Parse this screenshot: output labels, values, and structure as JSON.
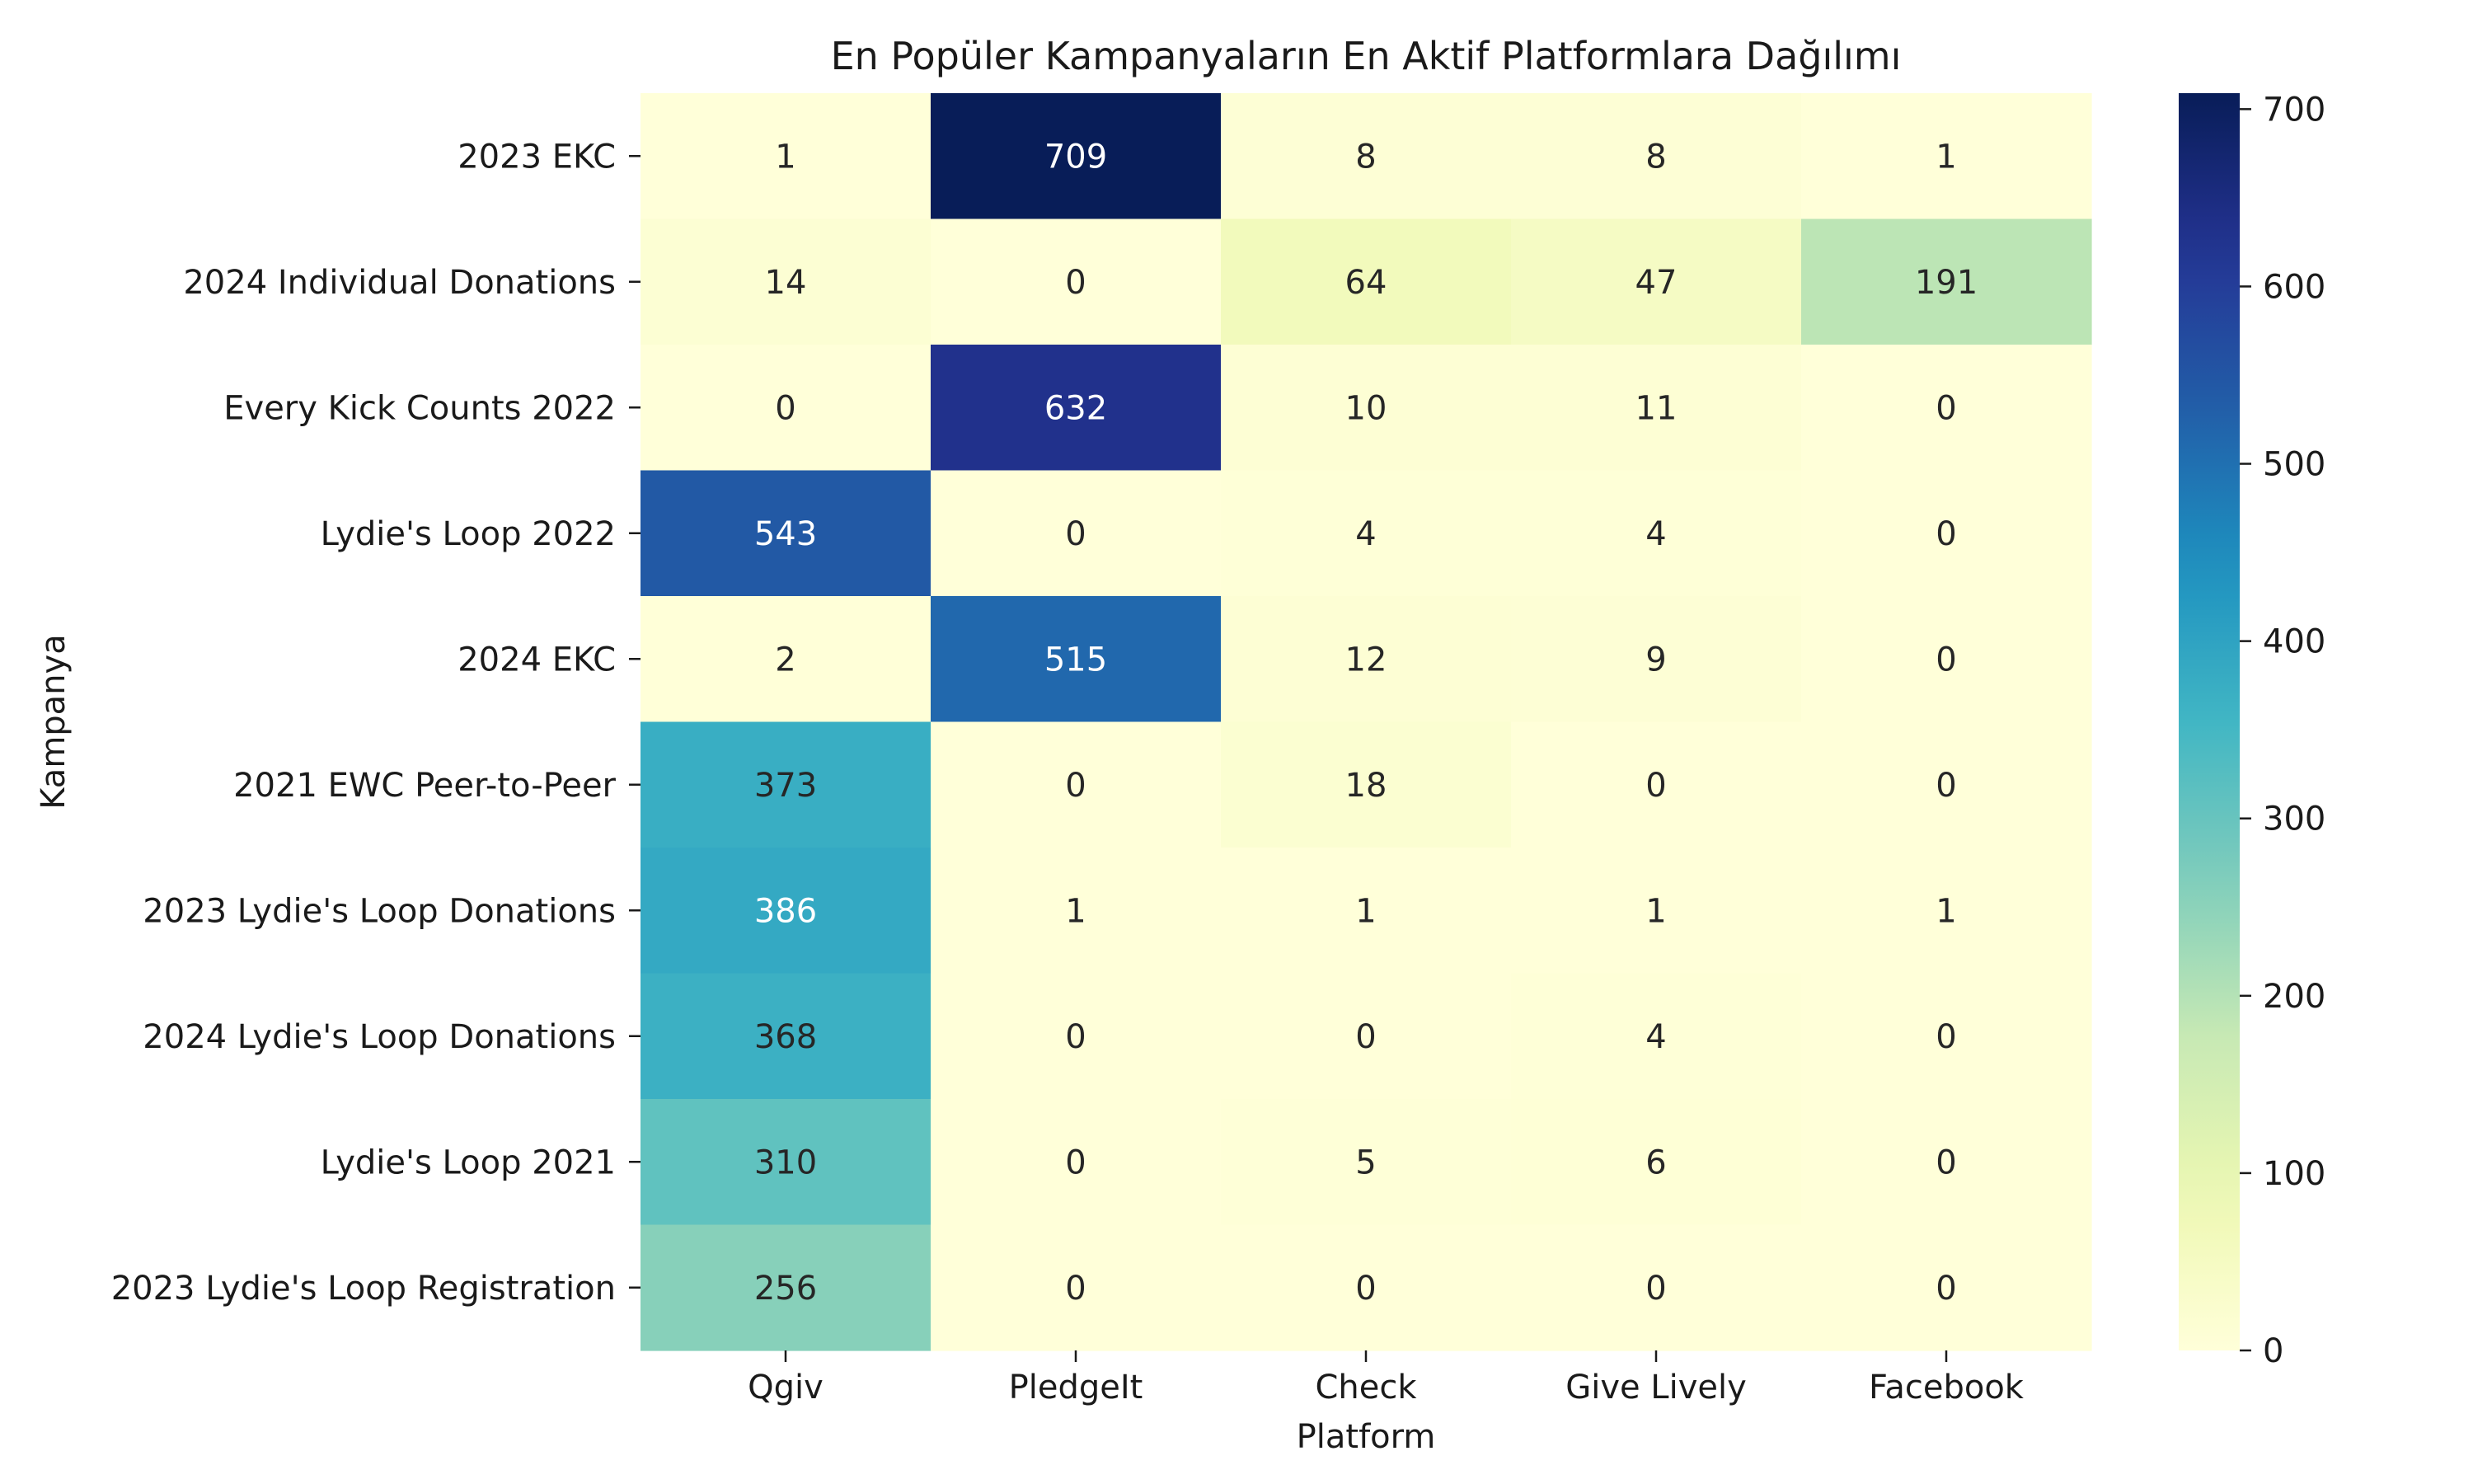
{
  "chart_data": {
    "type": "heatmap",
    "title": "En Popüler Kampanyaların En Aktif Platformlara Dağılımı",
    "xlabel": "Platform",
    "ylabel": "Kampanya",
    "x_categories": [
      "Qgiv",
      "PledgeIt",
      "Check",
      "Give Lively",
      "Facebook"
    ],
    "y_categories": [
      "2023 EKC",
      "2024 Individual Donations",
      "Every Kick Counts 2022",
      "Lydie's Loop 2022",
      "2024 EKC",
      "2021 EWC Peer-to-Peer",
      "2023 Lydie's Loop Donations",
      "2024 Lydie's Loop Donations",
      "Lydie's Loop 2021",
      "2023 Lydie's Loop Registration"
    ],
    "values": [
      [
        1,
        709,
        8,
        8,
        1
      ],
      [
        14,
        0,
        64,
        47,
        191
      ],
      [
        0,
        632,
        10,
        11,
        0
      ],
      [
        543,
        0,
        4,
        4,
        0
      ],
      [
        2,
        515,
        12,
        9,
        0
      ],
      [
        373,
        0,
        18,
        0,
        0
      ],
      [
        386,
        1,
        1,
        1,
        1
      ],
      [
        368,
        0,
        0,
        4,
        0
      ],
      [
        310,
        0,
        5,
        6,
        0
      ],
      [
        256,
        0,
        0,
        0,
        0
      ]
    ],
    "colorbar": {
      "colormap": "YlGnBu",
      "range": [
        0,
        709
      ],
      "ticks": [
        0,
        100,
        200,
        300,
        400,
        500,
        600,
        700
      ]
    },
    "grid": false
  }
}
